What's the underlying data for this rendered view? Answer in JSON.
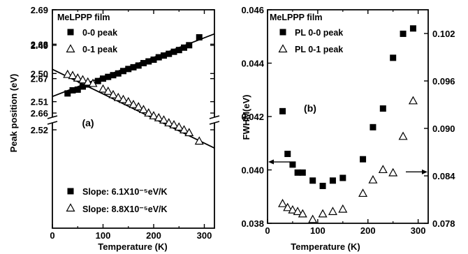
{
  "chart_data": [
    {
      "type": "scatter",
      "panel_label": "(a)",
      "sample_label": "MeLPPP film",
      "xlabel": "Temperature (K)",
      "ylabel": "Peak position (eV)",
      "xlim": [
        0,
        320
      ],
      "x_ticks": [
        "0",
        "100",
        "200",
        "300"
      ],
      "y_axis_broken": true,
      "ylim_upper": [
        2.66,
        2.69
      ],
      "ylim_lower": [
        2.485,
        2.53
      ],
      "y_ticks_upper": [
        "2.66",
        "2.67",
        "2.68",
        "2.69"
      ],
      "y_ticks_lower": [
        "2.49",
        "2.50",
        "2.51",
        "2.52"
      ],
      "legend": [
        "0-0 peak",
        "0-1 peak"
      ],
      "series": [
        {
          "name": "0-0 peak",
          "marker": "filled-square",
          "x": [
            30,
            40,
            50,
            60,
            70,
            90,
            100,
            110,
            120,
            130,
            140,
            150,
            160,
            170,
            180,
            190,
            200,
            210,
            220,
            230,
            240,
            250,
            260,
            270,
            290
          ],
          "y": [
            2.6657,
            2.6666,
            2.6668,
            2.6677,
            2.6683,
            2.6693,
            2.67,
            2.6705,
            2.671,
            2.6715,
            2.6722,
            2.6728,
            2.6733,
            2.6738,
            2.6745,
            2.675,
            2.6755,
            2.6762,
            2.6767,
            2.6772,
            2.6778,
            2.6783,
            2.679,
            2.6797,
            2.682
          ],
          "fit": [
            2.6648,
            2.683
          ],
          "slope_label": "Slope: 6.1X10⁻⁵eV/K"
        },
        {
          "name": "0-1 peak",
          "marker": "open-triangle",
          "x": [
            30,
            40,
            50,
            60,
            70,
            80,
            100,
            110,
            120,
            130,
            140,
            150,
            160,
            170,
            180,
            190,
            200,
            210,
            220,
            230,
            240,
            250,
            260,
            270,
            290
          ],
          "y": [
            2.5003,
            2.5007,
            2.5016,
            2.5022,
            2.503,
            2.5035,
            2.5055,
            2.5063,
            2.5075,
            2.5085,
            2.5092,
            2.51,
            2.511,
            2.5118,
            2.5128,
            2.514,
            2.515,
            2.5157,
            2.5165,
            2.5175,
            2.5182,
            2.519,
            2.52,
            2.521,
            2.524
          ],
          "fit": [
            2.4985,
            2.5265
          ],
          "slope_label": "Slope: 8.8X10⁻⁵eV/K"
        }
      ]
    },
    {
      "type": "scatter",
      "panel_label": "(b)",
      "sample_label": "MeLPPP film",
      "xlabel": "Temperature (K)",
      "ylabel": "FWHM(eV)",
      "xlim": [
        0,
        320
      ],
      "x_ticks": [
        "0",
        "100",
        "200",
        "300"
      ],
      "ylim_left": [
        0.038,
        0.046
      ],
      "y_ticks_left": [
        "0.038",
        "0.040",
        "0.042",
        "0.044",
        "0.046"
      ],
      "ylim_right": [
        0.078,
        0.105
      ],
      "y_ticks_right": [
        "0.078",
        "0.084",
        "0.090",
        "0.096",
        "0.102"
      ],
      "legend": [
        "PL 0-0 peak",
        "PL 0-1 peak"
      ],
      "series": [
        {
          "name": "PL 0-0 peak",
          "marker": "filled-square",
          "axis": "left",
          "x": [
            30,
            40,
            50,
            60,
            70,
            90,
            110,
            130,
            150,
            190,
            210,
            230,
            250,
            270,
            290
          ],
          "y": [
            0.0422,
            0.0406,
            0.0402,
            0.0399,
            0.0399,
            0.0396,
            0.0394,
            0.0396,
            0.0397,
            0.0404,
            0.0416,
            0.0423,
            0.0442,
            0.0451,
            0.0453
          ]
        },
        {
          "name": "PL 0-1 peak",
          "marker": "open-triangle",
          "axis": "right",
          "x": [
            30,
            40,
            50,
            60,
            70,
            90,
            110,
            130,
            150,
            190,
            210,
            230,
            250,
            270,
            290
          ],
          "y": [
            0.0805,
            0.08,
            0.0797,
            0.0795,
            0.0792,
            0.0785,
            0.0792,
            0.0795,
            0.0798,
            0.0818,
            0.0835,
            0.0848,
            0.0844,
            0.089,
            0.0935
          ]
        }
      ]
    }
  ]
}
